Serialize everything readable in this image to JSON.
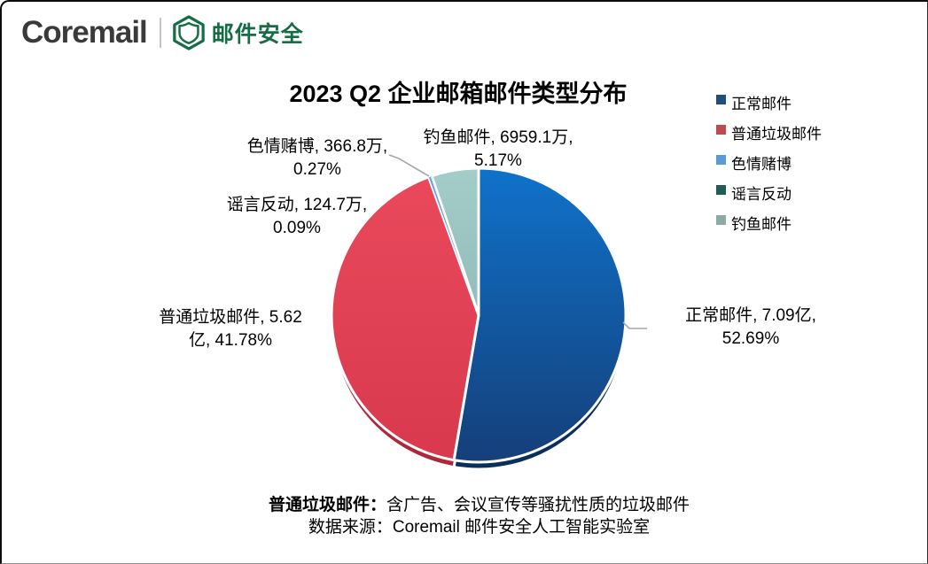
{
  "logo": {
    "brand": "Coremail",
    "product": "邮件安全",
    "brand_color": "#3a3a3a",
    "product_color": "#156d45"
  },
  "chart": {
    "title": "2023 Q2 企业邮箱邮件类型分布",
    "callouts": [
      {
        "id": "fishing",
        "line1": "钓鱼邮件, 6959.1万,",
        "line2": "5.17%"
      },
      {
        "id": "sexgamble",
        "line1": "色情赌博, 366.8万,",
        "line2": "0.27%"
      },
      {
        "id": "rumor",
        "line1": "谣言反动, 124.7万,",
        "line2": "0.09%"
      },
      {
        "id": "spam",
        "line1": "普通垃圾邮件, 5.62",
        "line2": "亿, 41.78%"
      },
      {
        "id": "normal",
        "line1": "正常邮件, 7.09亿,",
        "line2": "52.69%"
      }
    ]
  },
  "legend": {
    "items": [
      {
        "id": "normal",
        "label": "正常邮件",
        "color": "#1F4E79"
      },
      {
        "id": "spam",
        "label": "普通垃圾邮件",
        "color": "#BE4B52"
      },
      {
        "id": "sexgamble",
        "label": "色情赌博",
        "color": "#5B9BD5"
      },
      {
        "id": "rumor",
        "label": "谣言反动",
        "color": "#215C55"
      },
      {
        "id": "fishing",
        "label": "钓鱼邮件",
        "color": "#8CABA5"
      }
    ]
  },
  "footer": {
    "note_bold": "普通垃圾邮件：",
    "note_rest": "含广告、会议宣传等骚扰性质的垃圾邮件",
    "source": "数据来源：Coremail 邮件安全人工智能实验室"
  },
  "chart_data": {
    "type": "pie",
    "title": "2023 Q2 企业邮箱邮件类型分布",
    "start_angle_deg": 0,
    "direction": "clockwise",
    "legend_position": "right",
    "series": [
      {
        "id": "normal",
        "name": "正常邮件",
        "amount": "7.09亿",
        "percent": 52.69,
        "color_top": "#0F72CA",
        "color_bottom": "#153F79",
        "rim_color": "#0A2F5C"
      },
      {
        "id": "spam",
        "name": "普通垃圾邮件",
        "amount": "5.62亿",
        "percent": 41.78,
        "color_top": "#E9495B",
        "color_bottom": "#D8394D",
        "rim_color": "#B02739"
      },
      {
        "id": "sexgamble",
        "name": "色情赌博",
        "amount": "366.8万",
        "percent": 0.27,
        "color_top": "#5B9BD5",
        "color_bottom": "#5B9BD5",
        "rim_color": "#3E6E9E"
      },
      {
        "id": "rumor",
        "name": "谣言反动",
        "amount": "124.7万",
        "percent": 0.09,
        "color_top": "#215C55",
        "color_bottom": "#215C55",
        "rim_color": "#16423D"
      },
      {
        "id": "fishing",
        "name": "钓鱼邮件",
        "amount": "6959.1万",
        "percent": 5.17,
        "color_top": "#A4CCC8",
        "color_bottom": "#93BDB9",
        "rim_color": "#70958F"
      }
    ]
  }
}
